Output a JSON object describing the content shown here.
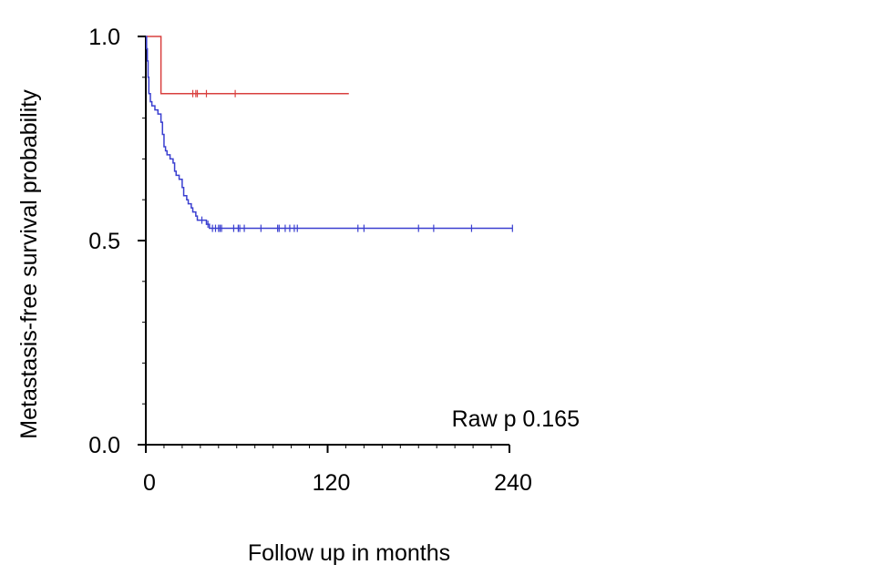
{
  "chart_data": {
    "type": "line",
    "subtype": "kaplan-meier",
    "xlabel": "Follow up in months",
    "ylabel": "Metastasis-free survival probability",
    "xlim": [
      0,
      240
    ],
    "ylim": [
      0,
      1.0
    ],
    "xticks": [
      0,
      120,
      240
    ],
    "xtick_labels": [
      "0",
      "120",
      "240"
    ],
    "yticks": [
      0.0,
      0.5,
      1.0
    ],
    "ytick_labels": [
      "0.0",
      "0.5",
      "1.0"
    ],
    "annotation": "Raw p 0.165",
    "grid": false,
    "series": [
      {
        "color": "#d9403f",
        "step_points": [
          [
            0,
            1.0
          ],
          [
            10,
            1.0
          ],
          [
            10,
            0.86
          ],
          [
            134,
            0.86
          ]
        ],
        "censor_x": [
          31,
          33,
          34,
          40,
          59
        ]
      },
      {
        "color": "#3a3fd0",
        "step_points": [
          [
            0,
            1.0
          ],
          [
            0.5,
            0.97
          ],
          [
            1,
            0.94
          ],
          [
            1.5,
            0.9
          ],
          [
            2,
            0.86
          ],
          [
            3,
            0.84
          ],
          [
            4,
            0.83
          ],
          [
            6,
            0.82
          ],
          [
            8,
            0.81
          ],
          [
            10,
            0.79
          ],
          [
            11,
            0.76
          ],
          [
            12,
            0.73
          ],
          [
            13,
            0.72
          ],
          [
            14,
            0.71
          ],
          [
            16,
            0.7
          ],
          [
            18,
            0.69
          ],
          [
            19,
            0.67
          ],
          [
            20,
            0.66
          ],
          [
            22,
            0.65
          ],
          [
            24,
            0.63
          ],
          [
            25,
            0.61
          ],
          [
            27,
            0.6
          ],
          [
            28,
            0.59
          ],
          [
            30,
            0.58
          ],
          [
            31,
            0.57
          ],
          [
            33,
            0.56
          ],
          [
            34,
            0.55
          ],
          [
            36,
            0.55
          ],
          [
            38,
            0.55
          ],
          [
            40,
            0.54
          ],
          [
            42,
            0.53
          ],
          [
            44,
            0.53
          ],
          [
            46,
            0.53
          ],
          [
            242,
            0.53
          ]
        ],
        "censor_x": [
          37,
          41,
          44,
          46,
          48,
          49,
          50,
          58,
          61,
          62,
          65,
          76,
          87,
          88,
          92,
          95,
          98,
          100,
          140,
          144,
          180,
          190,
          215,
          242
        ]
      }
    ]
  }
}
